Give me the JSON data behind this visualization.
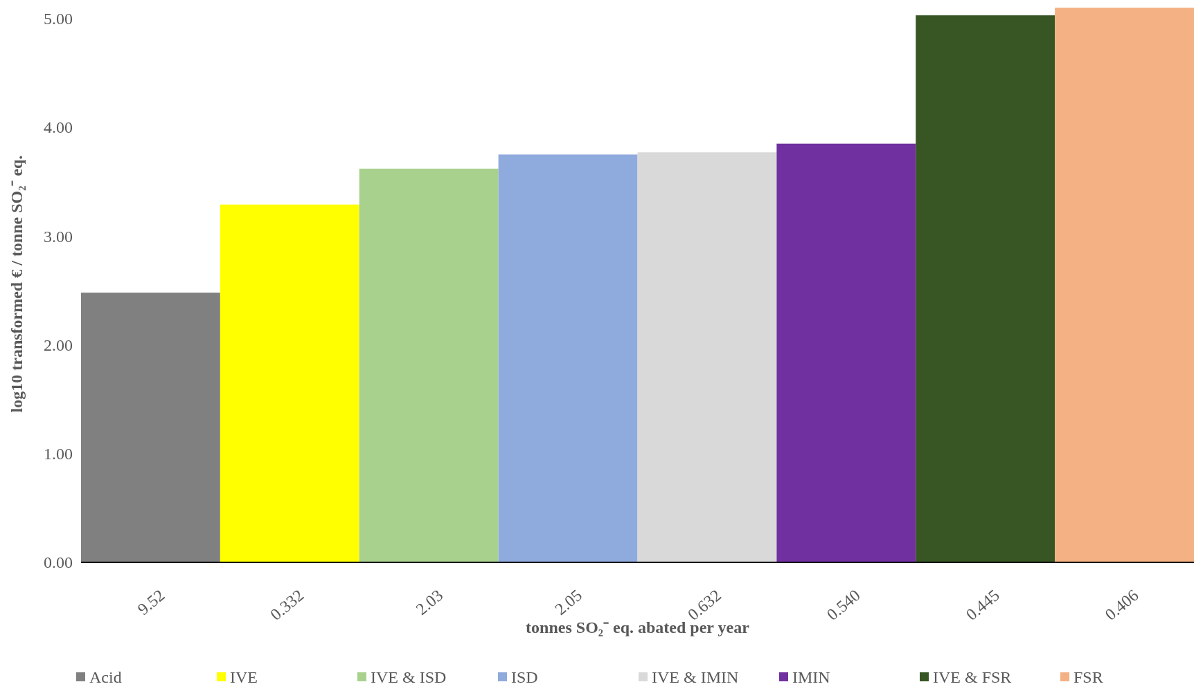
{
  "chart_data": {
    "type": "bar",
    "xlabel": "tonnes SO₂⁻ eq. abated per year",
    "ylabel": "log10 transformed € / tonne SO₂⁻ eq.",
    "categories": [
      "9.52",
      "0.332",
      "2.03",
      "2.05",
      "0.632",
      "0.540",
      "0.445",
      "0.406"
    ],
    "series": [
      {
        "name": "Acid",
        "color": "#808080",
        "values": [
          2.48,
          null,
          null,
          null,
          null,
          null,
          null,
          null
        ]
      },
      {
        "name": "IVE",
        "color": "#ffff00",
        "values": [
          null,
          3.29,
          null,
          null,
          null,
          null,
          null,
          null
        ]
      },
      {
        "name": "IVE & ISD",
        "color": "#a9d18e",
        "values": [
          null,
          null,
          3.62,
          null,
          null,
          null,
          null,
          null
        ]
      },
      {
        "name": "ISD",
        "color": "#8faadc",
        "values": [
          null,
          null,
          null,
          3.75,
          null,
          null,
          null,
          null
        ]
      },
      {
        "name": "IVE & IMIN",
        "color": "#d9d9d9",
        "values": [
          null,
          null,
          null,
          null,
          3.77,
          null,
          null,
          null
        ]
      },
      {
        "name": "IMIN",
        "color": "#7030a0",
        "values": [
          null,
          null,
          null,
          null,
          null,
          3.85,
          null,
          null
        ]
      },
      {
        "name": "IVE & FSR",
        "color": "#375623",
        "values": [
          null,
          null,
          null,
          null,
          null,
          null,
          5.03,
          null
        ]
      },
      {
        "name": "FSR",
        "color": "#f4b183",
        "values": [
          null,
          null,
          null,
          null,
          null,
          null,
          null,
          5.1
        ]
      }
    ],
    "ylim": [
      0,
      5.12
    ],
    "yticks": [
      {
        "value": 0,
        "label": "0.00"
      },
      {
        "value": 1,
        "label": "1.00"
      },
      {
        "value": 2,
        "label": "2.00"
      },
      {
        "value": 3,
        "label": "3.00"
      },
      {
        "value": 4,
        "label": "4.00"
      },
      {
        "value": 5,
        "label": "5.00"
      }
    ],
    "grid": false,
    "legend": "bottom"
  }
}
